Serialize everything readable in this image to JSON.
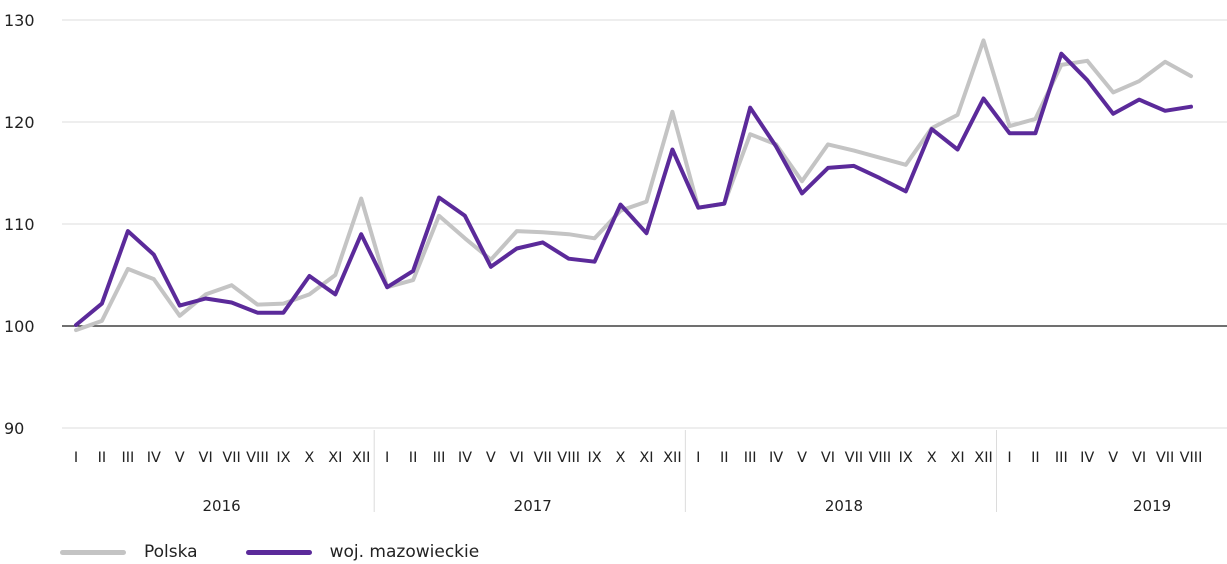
{
  "chart_data": {
    "type": "line",
    "title": "",
    "xlabel": "",
    "ylabel": "",
    "ylim": [
      90,
      130
    ],
    "yticks": [
      "90",
      "100",
      "110",
      "120",
      "130"
    ],
    "baseline": 100,
    "grid": true,
    "legend_position": "bottom-left",
    "years": [
      {
        "label": "2016",
        "months": [
          "I",
          "II",
          "III",
          "IV",
          "V",
          "VI",
          "VII",
          "VIII",
          "IX",
          "X",
          "XI",
          "XII"
        ]
      },
      {
        "label": "2017",
        "months": [
          "I",
          "II",
          "III",
          "IV",
          "V",
          "VI",
          "VII",
          "VIII",
          "IX",
          "X",
          "XI",
          "XII"
        ]
      },
      {
        "label": "2018",
        "months": [
          "I",
          "II",
          "III",
          "IV",
          "V",
          "VI",
          "VII",
          "VIII",
          "IX",
          "X",
          "XI",
          "XII"
        ]
      },
      {
        "label": "2019",
        "months": [
          "I",
          "II",
          "III",
          "IV",
          "V",
          "VI",
          "VII",
          "VIII"
        ]
      }
    ],
    "series": [
      {
        "name": "Polska",
        "color": "#c4c4c4",
        "values": [
          99.6,
          100.5,
          105.6,
          104.6,
          101.0,
          103.1,
          104.0,
          102.1,
          102.2,
          103.1,
          105.0,
          112.5,
          103.8,
          104.5,
          110.8,
          108.6,
          106.5,
          109.3,
          109.2,
          109.0,
          108.6,
          111.3,
          112.2,
          121.0,
          111.6,
          112.0,
          118.8,
          117.8,
          114.2,
          117.8,
          117.2,
          116.5,
          115.8,
          119.4,
          120.7,
          128.0,
          119.6,
          120.3,
          125.6,
          126.0,
          122.9,
          124.0,
          125.9,
          124.5
        ]
      },
      {
        "name": "woj. mazowieckie",
        "color": "#5b2a9a",
        "values": [
          100.1,
          102.2,
          109.3,
          107.0,
          102.0,
          102.7,
          102.3,
          101.3,
          101.3,
          104.9,
          103.1,
          109.0,
          103.8,
          105.4,
          112.6,
          110.8,
          105.8,
          107.6,
          108.2,
          106.6,
          106.3,
          111.9,
          109.1,
          117.3,
          111.6,
          112.0,
          121.4,
          117.6,
          113.0,
          115.5,
          115.7,
          114.5,
          113.2,
          119.3,
          117.3,
          122.3,
          118.9,
          118.9,
          126.7,
          124.1,
          120.8,
          122.2,
          121.1,
          121.5
        ]
      }
    ]
  }
}
